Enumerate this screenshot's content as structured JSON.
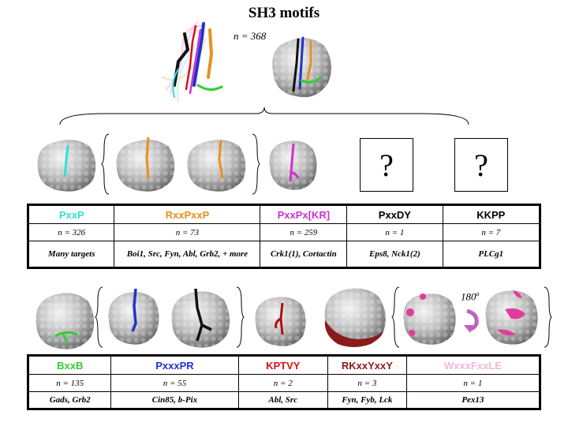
{
  "title": "SH3 motifs",
  "top_n": "n = 368",
  "rotation_label": "180",
  "rotation_unit": "o",
  "unknown_mark": "?",
  "colors": {
    "surface": "#c8c8c8",
    "cyan": "#33dddd",
    "orange": "#e8901c",
    "magenta": "#cc33cc",
    "green": "#33cc33",
    "blue": "#2233cc",
    "black": "#111111",
    "darkred": "#8b1a1a",
    "pink": "#e03c9a"
  },
  "table1": {
    "columns": [
      {
        "motif": "PxxP",
        "color": "#33dddd",
        "n": "n = 326",
        "targets": "Many targets"
      },
      {
        "motif": "RxxPxxP",
        "color": "#e8901c",
        "n": "n = 73",
        "targets": "Boi1, Src, Fyn, Abl, Grb2, + more"
      },
      {
        "motif": "PxxPx[KR]",
        "color": "#cc33cc",
        "n": "n = 259",
        "targets": "Crk1(1), Cortactin"
      },
      {
        "motif": "PxxDY",
        "color": "#000000",
        "n": "n = 1",
        "targets": "Eps8, Nck1(2)"
      },
      {
        "motif": "KKPP",
        "color": "#000000",
        "n": "n = 7",
        "targets": "PLCg1"
      }
    ]
  },
  "table2": {
    "columns": [
      {
        "motif": "BxxB",
        "color": "#33cc33",
        "n": "n = 135",
        "targets": "Gads, Grb2"
      },
      {
        "motif": "PxxxPR",
        "color": "#2233cc",
        "n": "n = 55",
        "targets": "Cin85, b-Pix"
      },
      {
        "motif": "KPTVY",
        "color": "#dd1111",
        "n": "n = 2",
        "targets": "Abl, Src"
      },
      {
        "motif": "RKxxYxxY",
        "color": "#8b1a1a",
        "n": "n = 3",
        "targets": "Fyn, Fyb, Lck"
      },
      {
        "motif": "WxxxFxxLE",
        "color": "#f0b8dc",
        "n": "n = 1",
        "targets": "Pex13"
      }
    ]
  }
}
